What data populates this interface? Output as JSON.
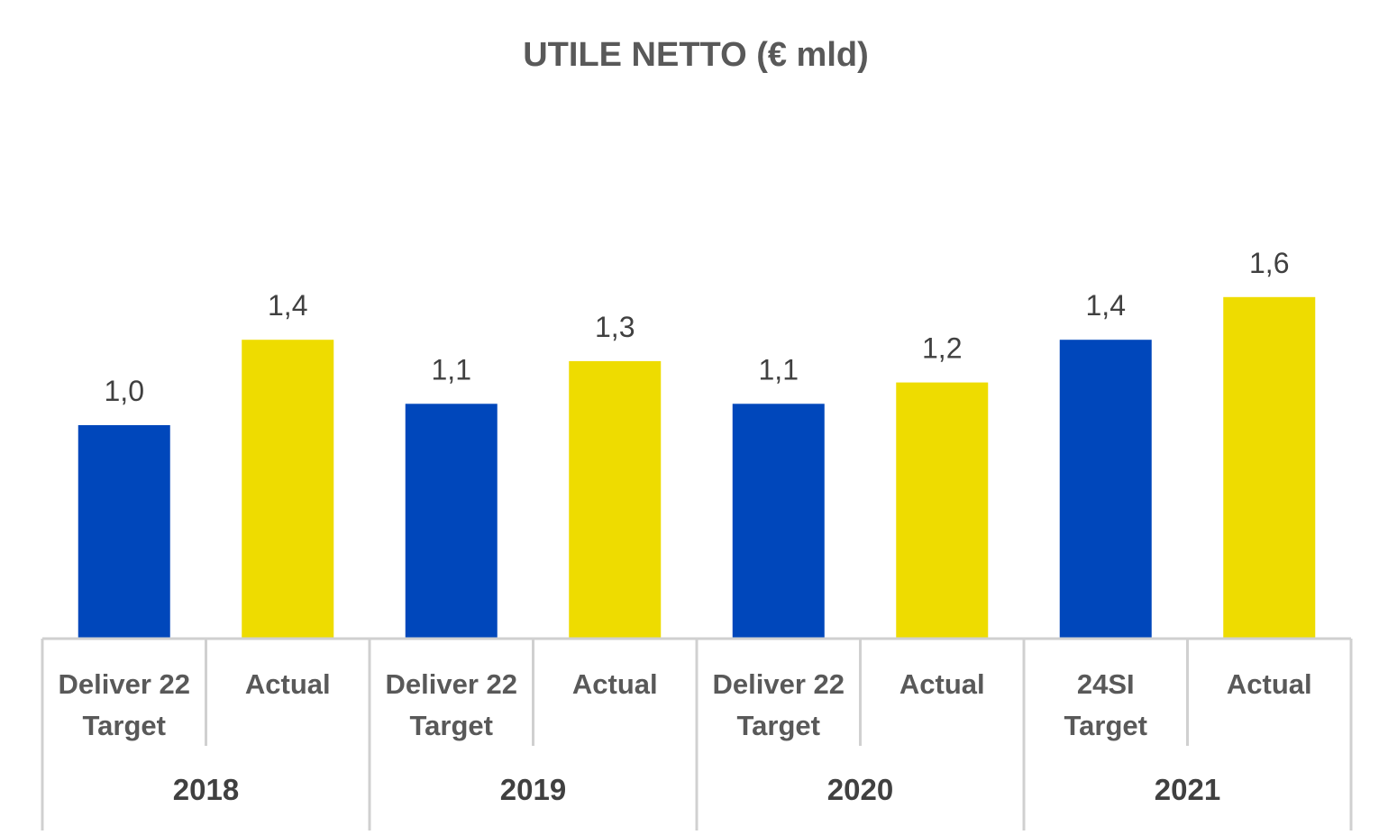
{
  "chart_data": {
    "type": "bar",
    "title": "UTILE NETTO (€ mld)",
    "ylim": [
      0,
      1.8
    ],
    "grid": false,
    "groups": [
      "2018",
      "2019",
      "2020",
      "2021"
    ],
    "bars": [
      {
        "group": "2018",
        "label": [
          "Deliver 22",
          "Target"
        ],
        "value": 1.0,
        "value_label": "1,0",
        "color": "#0047BB"
      },
      {
        "group": "2018",
        "label": [
          "Actual"
        ],
        "value": 1.4,
        "value_label": "1,4",
        "color": "#EEDC00"
      },
      {
        "group": "2019",
        "label": [
          "Deliver 22",
          "Target"
        ],
        "value": 1.1,
        "value_label": "1,1",
        "color": "#0047BB"
      },
      {
        "group": "2019",
        "label": [
          "Actual"
        ],
        "value": 1.3,
        "value_label": "1,3",
        "color": "#EEDC00"
      },
      {
        "group": "2020",
        "label": [
          "Deliver 22",
          "Target"
        ],
        "value": 1.1,
        "value_label": "1,1",
        "color": "#0047BB"
      },
      {
        "group": "2020",
        "label": [
          "Actual"
        ],
        "value": 1.2,
        "value_label": "1,2",
        "color": "#EEDC00"
      },
      {
        "group": "2021",
        "label": [
          "24SI",
          "Target"
        ],
        "value": 1.4,
        "value_label": "1,4",
        "color": "#0047BB"
      },
      {
        "group": "2021",
        "label": [
          "Actual"
        ],
        "value": 1.6,
        "value_label": "1,6",
        "color": "#EEDC00"
      }
    ]
  }
}
